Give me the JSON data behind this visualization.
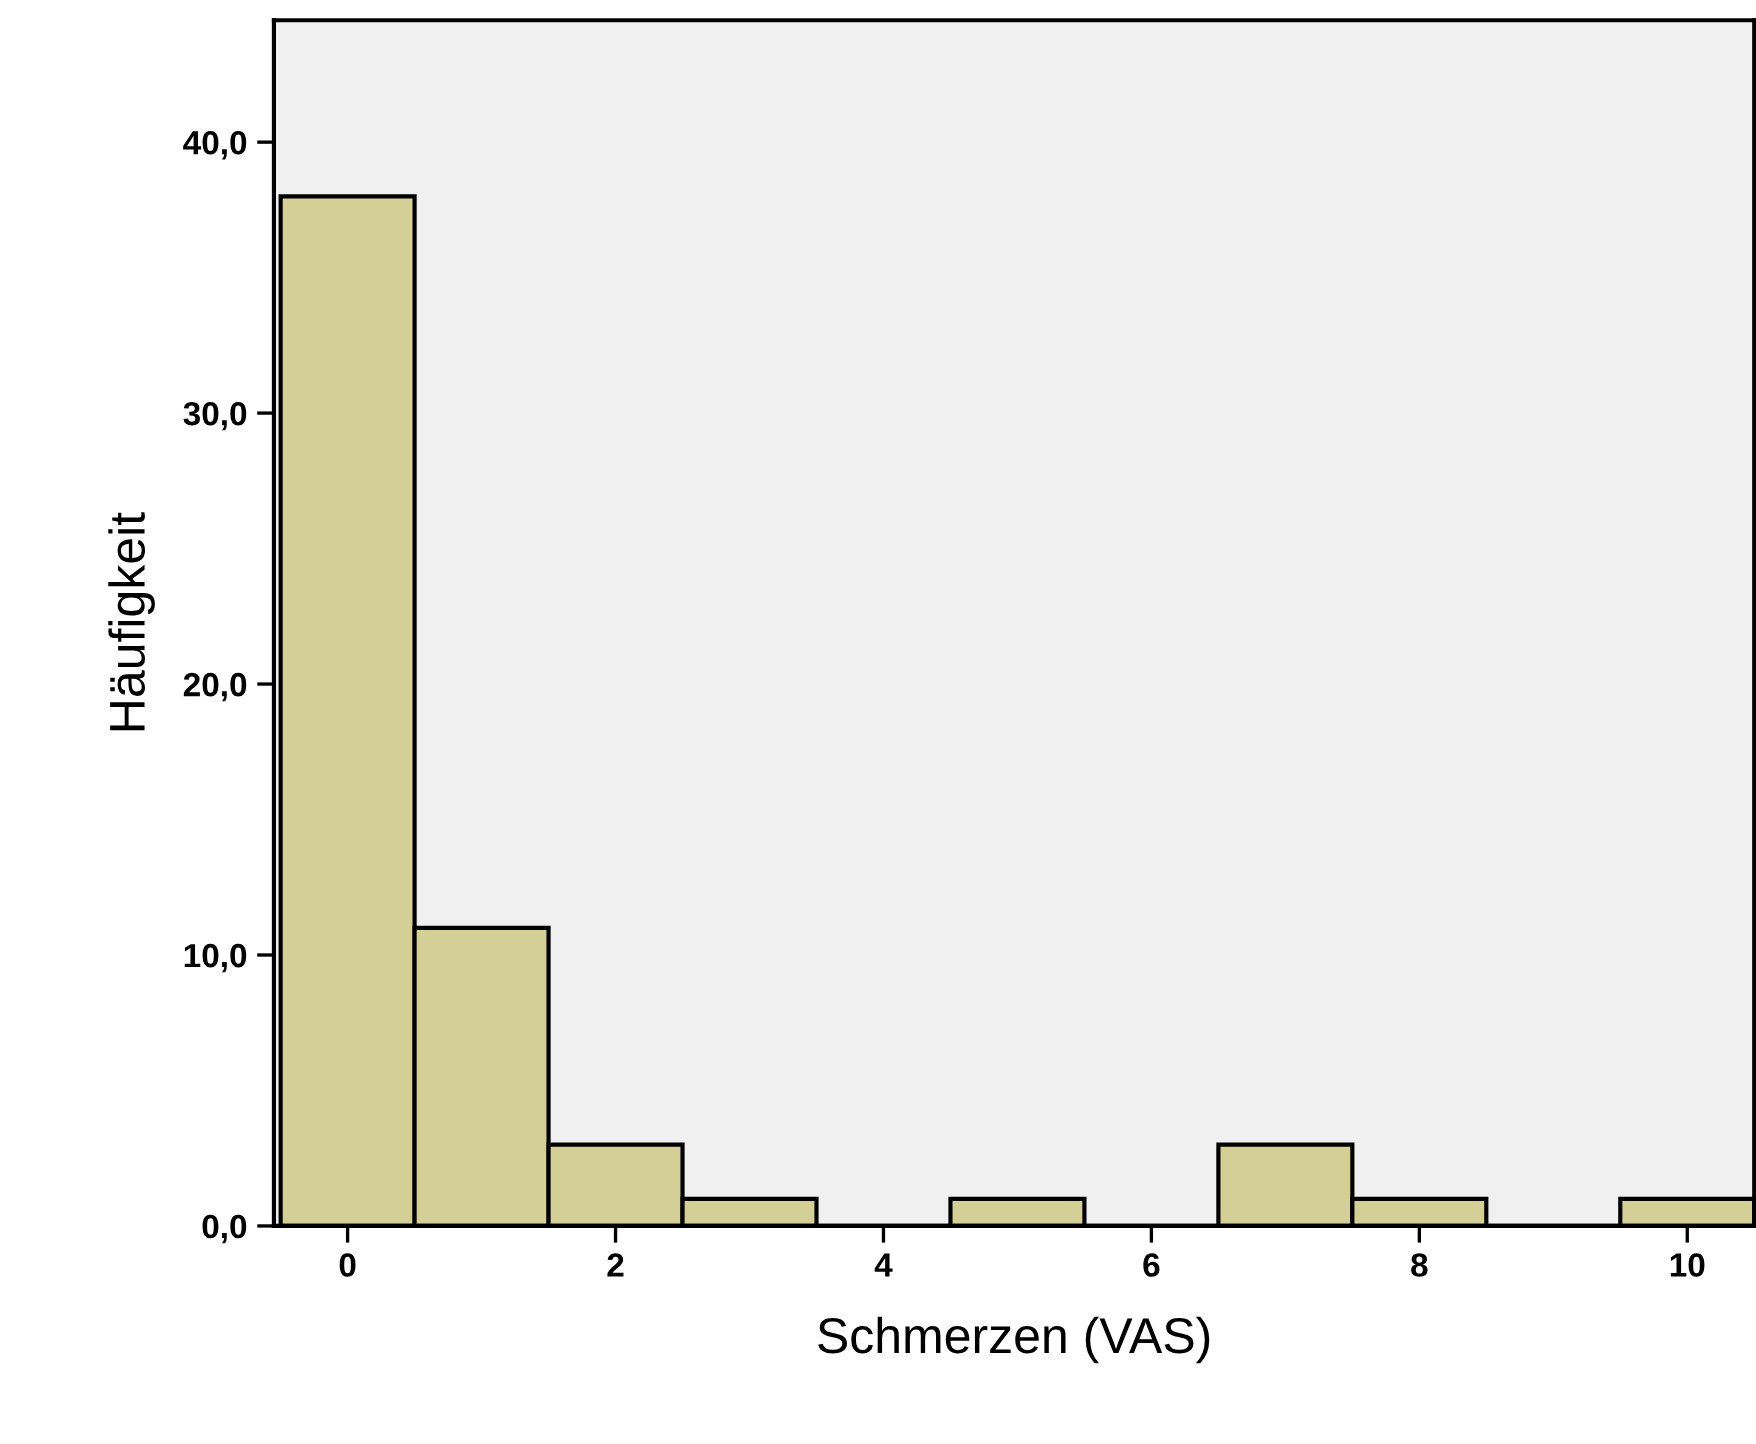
{
  "chart_data": {
    "type": "histogram",
    "xlabel": "Schmerzen (VAS)",
    "ylabel": "Häufigkeit",
    "bins": [
      -0.5,
      0.5,
      1.5,
      2.5,
      3.5,
      4.5,
      5.5,
      6.5,
      7.5,
      8.5,
      9.5,
      10.5
    ],
    "values": [
      38,
      11,
      3,
      1,
      0,
      1,
      0,
      3,
      1,
      0,
      1
    ],
    "color": "#d4cf97",
    "xlim": [
      -0.55,
      10.5
    ],
    "ylim": [
      0,
      44.5
    ],
    "xticks": [
      0,
      2,
      4,
      6,
      8,
      10
    ],
    "yticks": [
      {
        "value": 0,
        "label": "0,0"
      },
      {
        "value": 10,
        "label": "10,0"
      },
      {
        "value": 20,
        "label": "20,0"
      },
      {
        "value": 30,
        "label": "30,0"
      },
      {
        "value": 40,
        "label": "40,0"
      }
    ],
    "grid": false,
    "legend": false
  }
}
